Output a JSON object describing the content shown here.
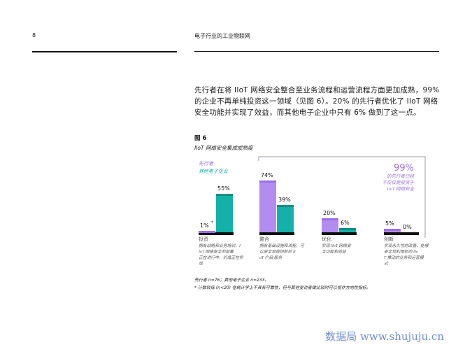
{
  "header": {
    "page_number": "8",
    "title": "电子行业的工业物联网"
  },
  "body_text": "先行者在将 IIoT 网络安全整合至业务流程和运营流程方面更加成熟，99% 的企业不再单纯投资这一领域（见图 6）。20% 的先行者优化了 IIoT 网络安全功能并实现了效益，而其他电子企业中只有 6% 做到了这一点。",
  "figure": {
    "number": "图 6",
    "subtitle": "IIoT 网络安全集成成熟度"
  },
  "chart_data": {
    "type": "bar",
    "legend": [
      "先行者",
      "其他电子企业"
    ],
    "categories": [
      "投资",
      "整合",
      "优化",
      "创新"
    ],
    "category_notes": [
      "拥有战略和业务培训，IIoT 网络安全的部署正在进行中，价值正在实现",
      "拥有基础设施和流程，可以安全地提供新的 IIoT 产品/服务",
      "实现 IIoT 网络安全功能和效益",
      "实现永久性的改善，能够安全地利用新的 IIoT 推动的业务和运营模式"
    ],
    "series": [
      {
        "name": "先行者",
        "values": [
          1,
          74,
          20,
          5
        ]
      },
      {
        "name": "其他电子企业",
        "values": [
          55,
          39,
          6,
          0
        ]
      }
    ],
    "value_labels": [
      [
        "1%",
        "74%",
        "20%",
        "5%"
      ],
      [
        "55%",
        "39%",
        "6%",
        "0%"
      ]
    ],
    "callout": {
      "value": "99%",
      "text": "的先行者已经不仅仅是投资于 IIoT 网络安全"
    },
    "colors": {
      "leaders": "#b38cf0",
      "leaders_top": "#9a6fe0",
      "others": "#13b1a7",
      "others_top": "#0f8c85",
      "baseline": "#111111",
      "callout": "#9a6fe0"
    },
    "asterisk": "*"
  },
  "notes": {
    "line1": "先行者 n=76；其他电子企业 n=233。",
    "line2": "* 计数较低 (n<20) 在统计学上不具有可靠性，但与其他受访者做比较时可以视作方向性指标。"
  },
  "watermark": "数据局 www.shujuju.cn"
}
